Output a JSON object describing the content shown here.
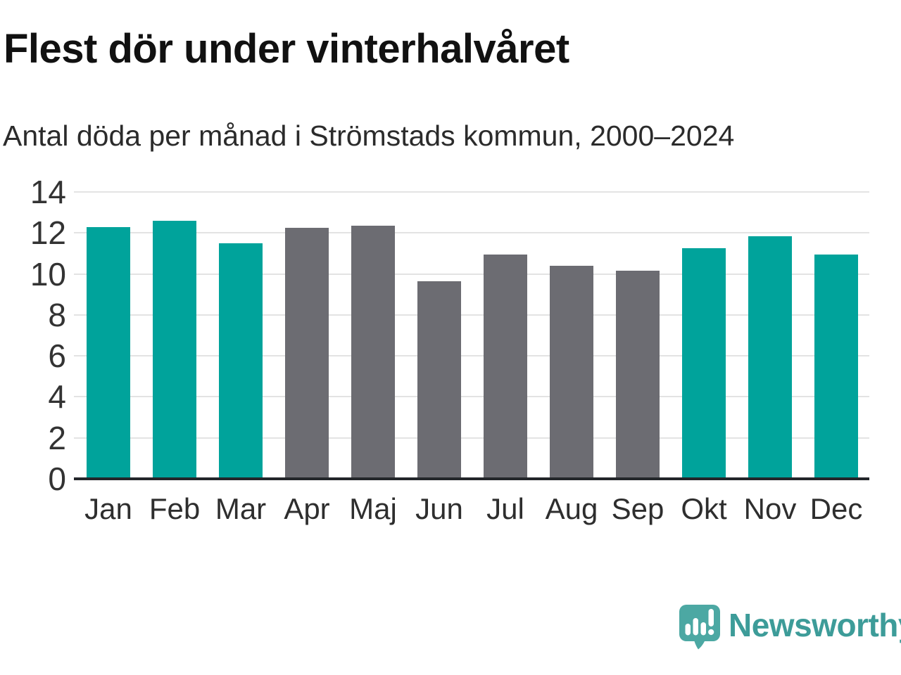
{
  "header": {
    "title": "Flest dör under vinterhalvåret",
    "subtitle": "Antal döda per månad i Strömstads kommun, 2000–2024"
  },
  "chart_data": {
    "type": "bar",
    "categories": [
      "Jan",
      "Feb",
      "Mar",
      "Apr",
      "Maj",
      "Jun",
      "Jul",
      "Aug",
      "Sep",
      "Okt",
      "Nov",
      "Dec"
    ],
    "values": [
      12.3,
      12.6,
      11.5,
      12.25,
      12.35,
      9.65,
      10.95,
      10.4,
      10.15,
      11.25,
      11.85,
      10.95
    ],
    "groups": [
      "winter",
      "winter",
      "winter",
      "summer",
      "summer",
      "summer",
      "summer",
      "summer",
      "summer",
      "winter",
      "winter",
      "winter"
    ],
    "title": "Flest dör under vinterhalvåret",
    "subtitle": "Antal döda per månad i Strömstads kommun, 2000–2024",
    "xlabel": "",
    "ylabel": "",
    "ylim": [
      0,
      14
    ],
    "yticks": [
      0,
      2,
      4,
      6,
      8,
      10,
      12,
      14
    ],
    "grid": true,
    "legend": false,
    "colors": {
      "winter": "#00a39b",
      "summer": "#6c6c72"
    },
    "gridline_color": "#e3e3e3",
    "axis_color": "#23262a"
  },
  "footer": {
    "brand": "Newsworthy",
    "brand_color": "#3d9c99",
    "logo_icon": "speech-bubble-bar-chart-icon",
    "logo_color": "#4ca8a3"
  }
}
